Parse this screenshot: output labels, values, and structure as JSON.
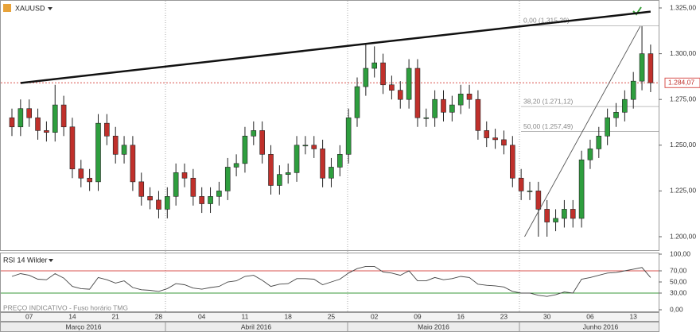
{
  "chart_data": [
    {
      "type": "candlestick",
      "title": "XAUUSD",
      "categories": [
        null,
        null,
        "07",
        null,
        null,
        null,
        null,
        "14",
        null,
        null,
        null,
        null,
        "21",
        null,
        null,
        null,
        null,
        "28",
        null,
        null,
        null,
        null,
        "04",
        null,
        null,
        null,
        null,
        "11",
        null,
        null,
        null,
        null,
        "18",
        null,
        null,
        null,
        null,
        "25",
        null,
        null,
        null,
        null,
        "02",
        null,
        null,
        null,
        null,
        "09",
        null,
        null,
        null,
        null,
        "16",
        null,
        null,
        null,
        null,
        "23",
        null,
        null,
        null,
        null,
        "30",
        null,
        null,
        null,
        null,
        "06",
        null,
        null,
        null,
        null,
        "13",
        null,
        null
      ],
      "open": [
        1265,
        1260,
        1270,
        1265,
        1258,
        1257,
        1272,
        1260,
        1237,
        1232,
        1230,
        1262,
        1255,
        1245,
        1250,
        1230,
        1222,
        1220,
        1215,
        1222,
        1235,
        1232,
        1222,
        1218,
        1222,
        1225,
        1238,
        1240,
        1255,
        1258,
        1245,
        1228,
        1234,
        1235,
        1250,
        1250,
        1248,
        1232,
        1238,
        1245,
        1265,
        1282,
        1292,
        1295,
        1283,
        1280,
        1275,
        1292,
        1265,
        1265,
        1275,
        1268,
        1272,
        1278,
        1275,
        1258,
        1254,
        1253,
        1250,
        1232,
        1225,
        1225,
        1215,
        1208,
        1210,
        1215,
        1210,
        1242,
        1248,
        1255,
        1265,
        1268,
        1275,
        1285,
        1300
      ],
      "high": [
        1270,
        1275,
        1275,
        1270,
        1263,
        1283,
        1277,
        1265,
        1242,
        1237,
        1267,
        1267,
        1260,
        1255,
        1255,
        1235,
        1227,
        1225,
        1227,
        1240,
        1240,
        1237,
        1227,
        1227,
        1230,
        1243,
        1245,
        1260,
        1263,
        1263,
        1250,
        1239,
        1240,
        1255,
        1255,
        1255,
        1253,
        1243,
        1250,
        1270,
        1287,
        1305,
        1304,
        1300,
        1288,
        1285,
        1297,
        1297,
        1270,
        1280,
        1280,
        1277,
        1283,
        1283,
        1280,
        1263,
        1259,
        1258,
        1255,
        1237,
        1230,
        1230,
        1220,
        1215,
        1220,
        1220,
        1247,
        1253,
        1260,
        1270,
        1273,
        1280,
        1290,
        1315,
        1305
      ],
      "low": [
        1255,
        1255,
        1260,
        1253,
        1252,
        1252,
        1255,
        1232,
        1227,
        1225,
        1225,
        1250,
        1240,
        1240,
        1225,
        1217,
        1215,
        1210,
        1210,
        1217,
        1227,
        1217,
        1213,
        1213,
        1217,
        1220,
        1233,
        1235,
        1250,
        1240,
        1223,
        1223,
        1229,
        1230,
        1245,
        1243,
        1227,
        1227,
        1233,
        1240,
        1260,
        1277,
        1287,
        1278,
        1275,
        1270,
        1270,
        1260,
        1260,
        1260,
        1263,
        1263,
        1267,
        1270,
        1253,
        1249,
        1248,
        1245,
        1227,
        1220,
        1220,
        1200,
        1200,
        1203,
        1205,
        1205,
        1205,
        1237,
        1243,
        1250,
        1260,
        1263,
        1270,
        1280,
        1279
      ],
      "close": [
        1260,
        1270,
        1265,
        1258,
        1257,
        1272,
        1260,
        1237,
        1232,
        1230,
        1262,
        1255,
        1245,
        1250,
        1230,
        1222,
        1220,
        1215,
        1222,
        1235,
        1232,
        1222,
        1218,
        1222,
        1225,
        1238,
        1240,
        1255,
        1258,
        1245,
        1228,
        1234,
        1235,
        1250,
        1250,
        1248,
        1232,
        1238,
        1245,
        1265,
        1282,
        1292,
        1295,
        1283,
        1280,
        1275,
        1292,
        1265,
        1265,
        1275,
        1268,
        1272,
        1278,
        1275,
        1258,
        1254,
        1253,
        1250,
        1232,
        1225,
        1225,
        1215,
        1208,
        1210,
        1215,
        1210,
        1242,
        1248,
        1255,
        1265,
        1268,
        1275,
        1285,
        1300,
        1284.07
      ],
      "up_color": "#2e9e3e",
      "down_color": "#c0302b",
      "ylim": [
        1195,
        1330
      ],
      "yticks": [
        {
          "value": 1200,
          "label": "1.200,00"
        },
        {
          "value": 1225,
          "label": "1.225,00"
        },
        {
          "value": 1250,
          "label": "1.250,00"
        },
        {
          "value": 1275,
          "label": "1.275,00"
        },
        {
          "value": 1300,
          "label": "1.300,00"
        },
        {
          "value": 1325,
          "label": "1.325,00"
        }
      ],
      "last_price": {
        "value": 1284.07,
        "label": "1.284,07"
      },
      "fibonacci": [
        {
          "value": 1315.29,
          "label": "0,00 (1.315,29)"
        },
        {
          "value": 1271.12,
          "label": "38,20 (1.271,12)"
        },
        {
          "value": 1257.49,
          "label": "50,00 (1.257,49)"
        }
      ],
      "trendlines": [
        {
          "x": [
            1,
            74
          ],
          "y": [
            1284,
            1323
          ]
        },
        {
          "x": [
            59.4,
            72.8
          ],
          "y": [
            1200,
            1315
          ]
        }
      ],
      "months": [
        "Março 2016",
        "Abril 2016",
        "Maio 2016",
        "Junho 2016"
      ]
    },
    {
      "type": "line",
      "title": "RSI 14 Wilder",
      "footnote": "PREÇO INDICATIVO - Fuso horário TMG",
      "values": [
        60,
        65,
        62,
        55,
        54,
        65,
        57,
        42,
        38,
        37,
        58,
        54,
        48,
        52,
        40,
        36,
        35,
        33,
        38,
        47,
        45,
        39,
        37,
        40,
        42,
        50,
        52,
        60,
        62,
        53,
        42,
        46,
        47,
        56,
        56,
        55,
        45,
        50,
        55,
        66,
        74,
        78,
        78,
        68,
        66,
        62,
        70,
        52,
        52,
        58,
        54,
        56,
        60,
        58,
        46,
        44,
        43,
        41,
        33,
        30,
        30,
        26,
        24,
        27,
        32,
        30,
        55,
        58,
        62,
        66,
        67,
        70,
        73,
        76,
        58
      ],
      "color": "#444444",
      "ylim": [
        0,
        100
      ],
      "yticks": [
        {
          "value": 0,
          "label": "0,00"
        },
        {
          "value": 30,
          "label": "30,00"
        },
        {
          "value": 50,
          "label": "50,00"
        },
        {
          "value": 70,
          "label": "70,00"
        },
        {
          "value": 100,
          "label": "100,00"
        }
      ],
      "levels": [
        {
          "value": 70,
          "color": "#d9534f"
        },
        {
          "value": 30,
          "color": "#3a9a3a"
        }
      ]
    }
  ]
}
